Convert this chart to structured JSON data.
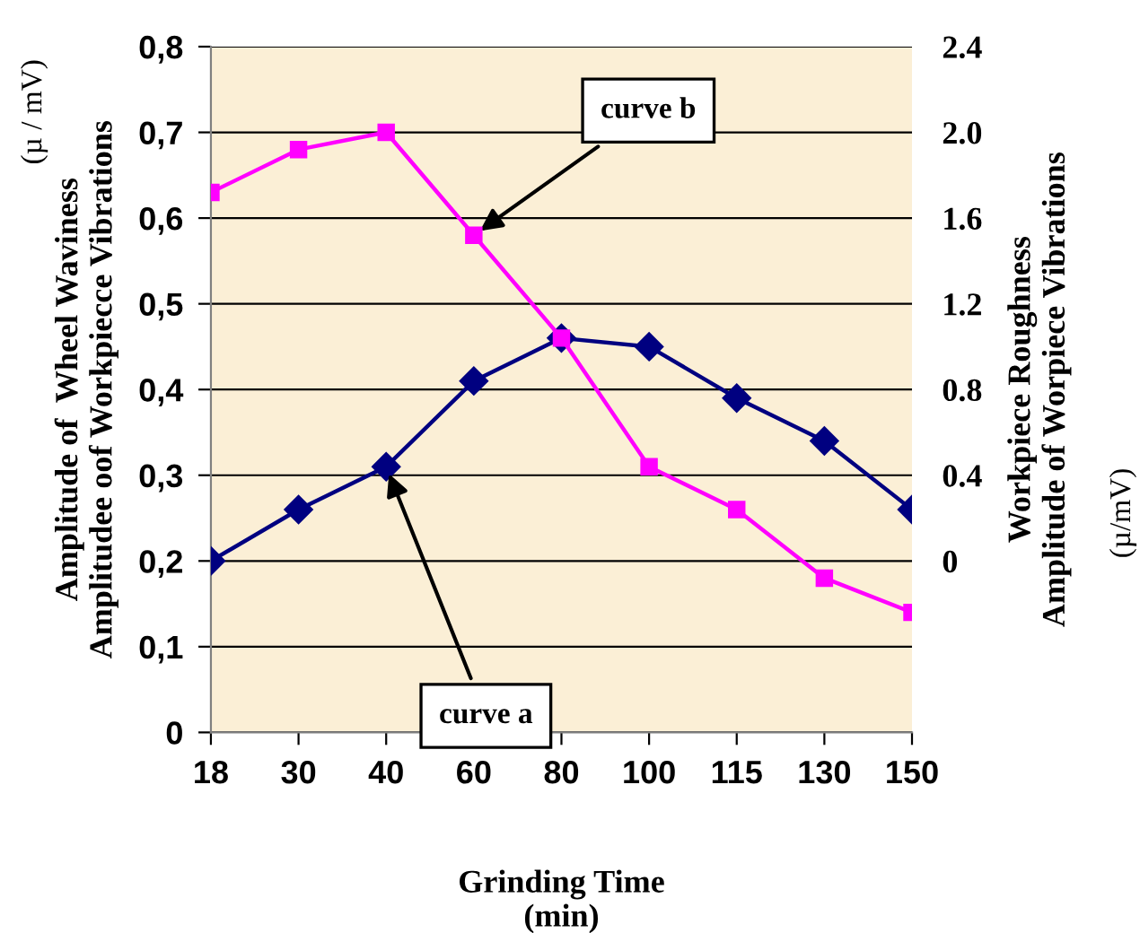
{
  "chart_data": {
    "type": "line",
    "xlabel": "Grinding Time\n(min)",
    "ylabel": "Amplitude of  Wheel Waviness\nAmplitudee oof Workpiecce Vibrations",
    "y2label": "Workpiece Roughness\nAmplitude of Worpiece Vibrations",
    "categories": [
      "18",
      "30",
      "40",
      "60",
      "80",
      "100",
      "115",
      "130",
      "150"
    ],
    "series": [
      {
        "color": "#000080",
        "marker": "diamond",
        "values": [
          0.2,
          0.26,
          0.31,
          0.41,
          0.46,
          0.45,
          0.39,
          0.34,
          0.26
        ]
      },
      {
        "color": "#ff00ff",
        "marker": "square",
        "axis": "y2",
        "values": [
          1.72,
          1.92,
          2.0,
          1.52,
          1.04,
          0.44,
          0.24,
          -0.08,
          -0.24
        ]
      }
    ],
    "ylim": [
      0,
      0.8
    ],
    "yticks": [
      {
        "value": 0,
        "label": "0"
      },
      {
        "value": 0.1,
        "label": "0,1"
      },
      {
        "value": 0.2,
        "label": "0,2"
      },
      {
        "value": 0.3,
        "label": "0,3"
      },
      {
        "value": 0.4,
        "label": "0,4"
      },
      {
        "value": 0.5,
        "label": "0,5"
      },
      {
        "value": 0.6,
        "label": "0,6"
      },
      {
        "value": 0.7,
        "label": "0,7"
      },
      {
        "value": 0.8,
        "label": "0,8"
      }
    ],
    "y2lim": [
      -0.8,
      2.4
    ],
    "y2ticks": [
      0,
      0.4,
      0.8,
      1.2,
      1.6,
      {
        "value": 2,
        "label": "2.0"
      },
      2.4
    ],
    "grid": "y",
    "annotations": [
      {
        "text": "curve a",
        "x": "40",
        "y": 0.31
      },
      {
        "text": "curve b",
        "x": "60",
        "y": 0.58
      },
      "(µ / mV)",
      "(µ/mV)"
    ]
  }
}
